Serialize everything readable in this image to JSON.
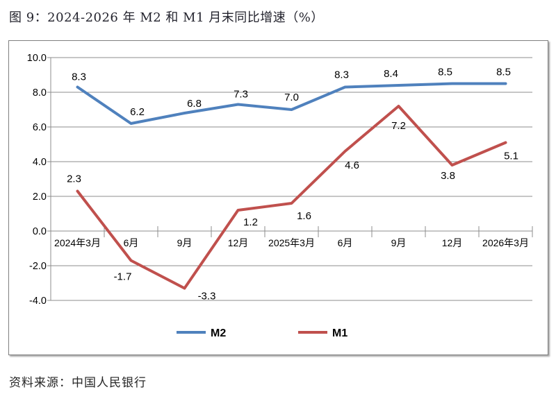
{
  "page": {
    "title": "图 9：2024-2026 年 M2 和 M1 月末同比增速（%）",
    "source": "资料来源：中国人民银行"
  },
  "chart_data": {
    "type": "line",
    "title": "图 9：2024-2026 年 M2 和 M1 月末同比增速（%）",
    "categories": [
      "2024年3月",
      "6月",
      "9月",
      "12月",
      "2025年3月",
      "6月",
      "9月",
      "12月",
      "2026年3月"
    ],
    "series": [
      {
        "name": "M2",
        "color": "#4F81BD",
        "values": [
          8.3,
          6.2,
          6.8,
          7.3,
          7.0,
          8.3,
          8.4,
          8.5,
          8.5
        ]
      },
      {
        "name": "M1",
        "color": "#C0504D",
        "values": [
          2.3,
          -1.7,
          -3.3,
          1.2,
          1.6,
          4.6,
          7.2,
          3.8,
          5.1
        ]
      }
    ],
    "ylim": [
      -4.0,
      10.0
    ],
    "ytick_step": 2.0,
    "ytick_labels": [
      "10.0",
      "8.0",
      "6.0",
      "4.0",
      "2.0",
      "0.0",
      "-2.0",
      "-4.0"
    ],
    "grid": true,
    "gridline_color": "#8c8c8c",
    "axis_color": "#8c8c8c",
    "data_label_color": "#000000",
    "legend_position": "bottom",
    "source": "资料来源：中国人民银行"
  }
}
